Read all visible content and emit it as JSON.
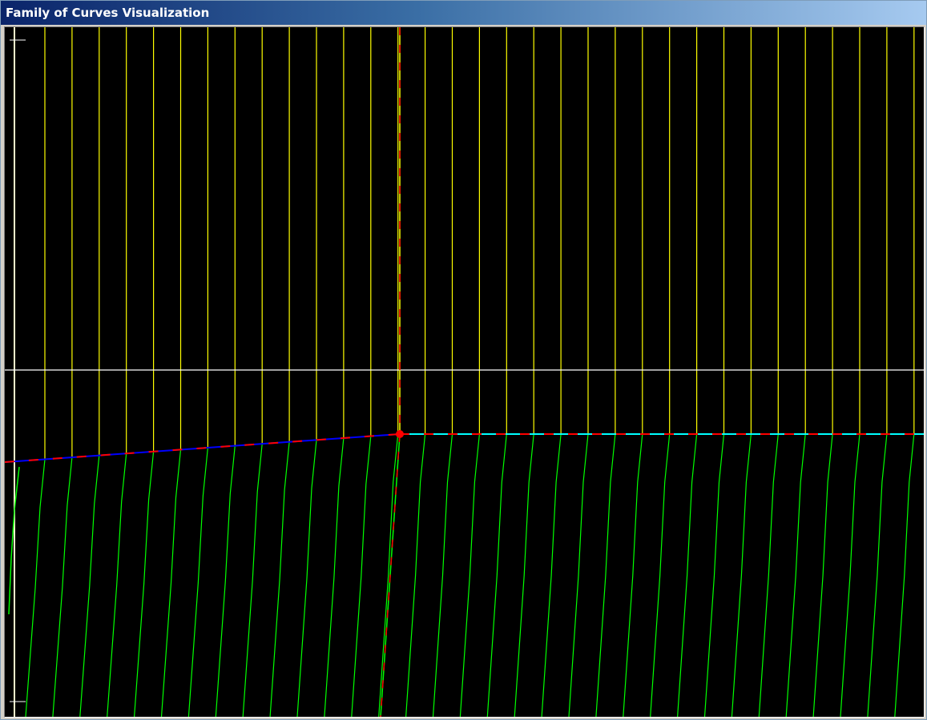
{
  "window": {
    "title": "Family of Curves Visualization"
  },
  "colors": {
    "background": "#000000",
    "vertical_curves": "#ffff00",
    "lower_curves": "#00ff00",
    "axis": "#ffffff",
    "left_boundary": "#ffffcc",
    "envelope_left": "#0000ff",
    "envelope_right": "#00ffff",
    "dashed_guide": "#ff0000",
    "marker": "#ff0000"
  },
  "chart_data": {
    "type": "line",
    "description_free": true,
    "families": [
      {
        "name": "",
        "kind": "vertical",
        "count": 34
      },
      {
        "name": "",
        "kind": "sloped",
        "count": 34
      }
    ],
    "critical_point": {
      "label": ""
    }
  }
}
